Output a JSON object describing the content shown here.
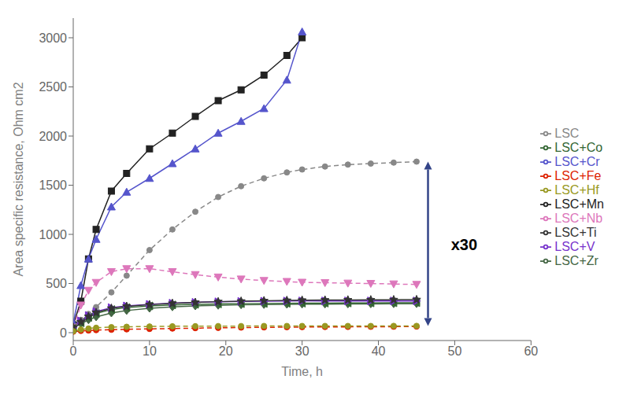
{
  "chart_data": {
    "type": "line",
    "xlabel": "Time, h",
    "ylabel": "Area specific resistance, Ohm cm2",
    "xlim": [
      0,
      60
    ],
    "ylim": [
      -80,
      3200
    ],
    "xticks": [
      0,
      10,
      20,
      30,
      40,
      50,
      60
    ],
    "yticks": [
      0,
      500,
      1000,
      1500,
      2000,
      2500,
      3000
    ],
    "grid": false,
    "legend": "right",
    "series": [
      {
        "name": "LSC",
        "color": "#888888",
        "marker": "circle",
        "line_style": "dashed",
        "x": [
          0,
          1,
          2,
          3,
          5,
          7,
          10,
          13,
          16,
          19,
          22,
          25,
          28,
          30,
          33,
          36,
          39,
          42,
          45
        ],
        "values": [
          80,
          130,
          190,
          260,
          410,
          580,
          840,
          1050,
          1230,
          1380,
          1490,
          1570,
          1630,
          1660,
          1690,
          1710,
          1720,
          1730,
          1740
        ]
      },
      {
        "name": "LSC+Mn",
        "color": "#222222",
        "marker": "square",
        "line_style": "solid",
        "x": [
          0,
          1,
          2,
          3,
          5,
          7,
          10,
          13,
          16,
          19,
          22,
          25,
          28,
          30
        ],
        "values": [
          80,
          320,
          750,
          1050,
          1440,
          1620,
          1870,
          2030,
          2200,
          2360,
          2470,
          2620,
          2820,
          3000
        ]
      },
      {
        "name": "LSC+Fe",
        "color": "#dd2200",
        "marker": "circle",
        "line_style": "dashed",
        "x": [
          0,
          1,
          2,
          3,
          5,
          7,
          10,
          13,
          16,
          19,
          22,
          25,
          28,
          30,
          33,
          36,
          39,
          42,
          45
        ],
        "values": [
          10,
          18,
          22,
          26,
          30,
          34,
          38,
          42,
          46,
          49,
          52,
          54,
          56,
          57,
          58,
          59,
          60,
          61,
          62
        ]
      },
      {
        "name": "LSC+Cr",
        "color": "#5555cc",
        "marker": "triangle-up",
        "line_style": "solid",
        "x": [
          0,
          1,
          2,
          3,
          5,
          7,
          10,
          13,
          16,
          19,
          22,
          25,
          28,
          30
        ],
        "values": [
          100,
          480,
          750,
          950,
          1280,
          1430,
          1570,
          1720,
          1870,
          2030,
          2150,
          2280,
          2570,
          3060
        ]
      },
      {
        "name": "LSC+Nb",
        "color": "#dd77bb",
        "marker": "triangle-down",
        "line_style": "dashed",
        "x": [
          0,
          1,
          2,
          3,
          5,
          7,
          10,
          13,
          16,
          19,
          22,
          25,
          28,
          30,
          33,
          36,
          39,
          42,
          45
        ],
        "values": [
          55,
          280,
          430,
          510,
          620,
          650,
          650,
          620,
          590,
          565,
          545,
          530,
          520,
          512,
          508,
          503,
          500,
          495,
          490
        ]
      },
      {
        "name": "LSC+Zr",
        "color": "#446644",
        "marker": "diamond",
        "line_style": "solid",
        "x": [
          0,
          1,
          2,
          3,
          5,
          7,
          10,
          13,
          16,
          19,
          22,
          25,
          28,
          30,
          33,
          36,
          39,
          42,
          45
        ],
        "values": [
          50,
          90,
          130,
          160,
          200,
          225,
          248,
          262,
          272,
          278,
          283,
          286,
          288,
          290,
          291,
          292,
          293,
          294,
          295
        ]
      },
      {
        "name": "LSC+Co",
        "color": "#336633",
        "marker": "triangle-left",
        "line_style": "solid",
        "x": [
          0,
          1,
          2,
          3,
          5,
          7,
          10,
          13,
          16,
          19,
          22,
          25,
          28,
          30,
          33,
          36,
          39,
          42,
          45
        ],
        "values": [
          45,
          100,
          155,
          195,
          235,
          255,
          272,
          282,
          288,
          292,
          295,
          297,
          299,
          300,
          301,
          302,
          303,
          304,
          305
        ]
      },
      {
        "name": "LSC+V",
        "color": "#7733cc",
        "marker": "triangle-right",
        "line_style": "solid",
        "x": [
          0,
          1,
          2,
          3,
          5,
          7,
          10,
          13,
          16,
          19,
          22,
          25,
          28,
          30,
          33,
          36,
          39,
          42,
          45
        ],
        "values": [
          55,
          120,
          175,
          215,
          255,
          272,
          288,
          300,
          308,
          314,
          318,
          320,
          322,
          323,
          323,
          323,
          323,
          323,
          323
        ]
      },
      {
        "name": "LSC+Ti",
        "color": "#333333",
        "marker": "star",
        "line_style": "solid",
        "x": [
          0,
          1,
          2,
          3,
          5,
          7,
          10,
          13,
          16,
          19,
          22,
          25,
          28,
          30,
          33,
          36,
          39,
          42,
          45
        ],
        "values": [
          55,
          110,
          165,
          205,
          248,
          268,
          285,
          298,
          308,
          315,
          320,
          325,
          328,
          330,
          332,
          333,
          334,
          335,
          336
        ]
      },
      {
        "name": "LSC+Hf",
        "color": "#999922",
        "marker": "circle",
        "line_style": "dashed",
        "x": [
          0,
          1,
          2,
          3,
          5,
          7,
          10,
          13,
          16,
          19,
          22,
          25,
          28,
          30,
          33,
          36,
          39,
          42,
          45
        ],
        "values": [
          15,
          32,
          42,
          50,
          56,
          60,
          63,
          65,
          66,
          67,
          67,
          68,
          68,
          68,
          68,
          68,
          68,
          69,
          69
        ]
      }
    ],
    "annotations": [
      {
        "text": "x30",
        "x": 49,
        "y": 900
      }
    ],
    "arrows": [
      {
        "x": 46.5,
        "y_from": 1740,
        "y_to": 69,
        "color": "#334488"
      }
    ]
  }
}
